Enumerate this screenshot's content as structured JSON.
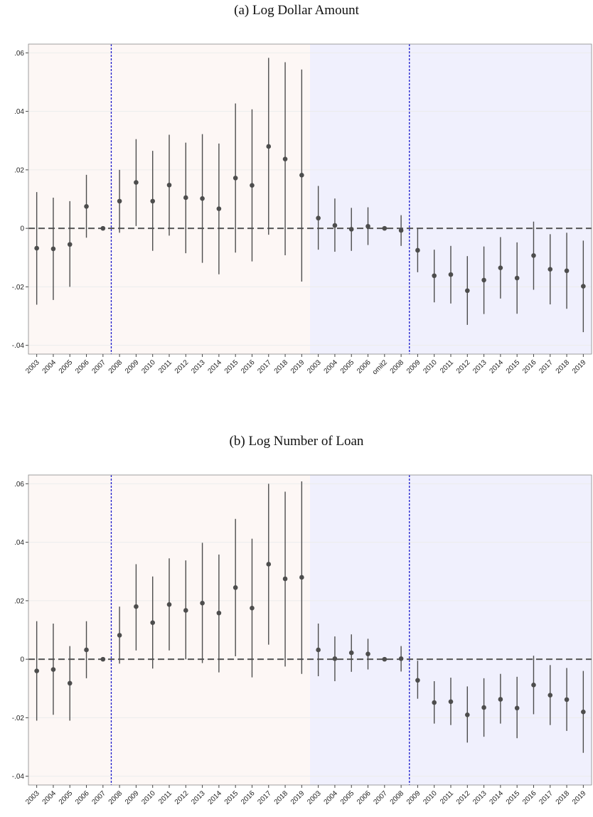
{
  "chart_data": [
    {
      "type": "errorbar",
      "title": "(a) Log Dollar Amount",
      "categories": [
        "2003",
        "2004",
        "2005",
        "2006",
        "2007",
        "2008",
        "2009",
        "2010",
        "2011",
        "2012",
        "2013",
        "2014",
        "2015",
        "2016",
        "2017",
        "2018",
        "2019",
        "2003",
        "2004",
        "2005",
        "2006",
        "omit2",
        "2008",
        "2009",
        "2010",
        "2011",
        "2012",
        "2013",
        "2014",
        "2015",
        "2016",
        "2017",
        "2018",
        "2019"
      ],
      "series": [
        {
          "color": "#4d4d4d",
          "background": "#fdf7f5",
          "values": [
            -0.0068,
            -0.007,
            -0.0055,
            0.0075,
            0,
            0.0093,
            0.0157,
            0.0093,
            0.0148,
            0.0105,
            0.0102,
            0.0067,
            0.0172,
            0.0147,
            0.028,
            0.0237,
            0.0182,
            null,
            null,
            null,
            null,
            null,
            null,
            null,
            null,
            null,
            null,
            null,
            null,
            null,
            null,
            null,
            null,
            null
          ],
          "lower": [
            -0.0261,
            -0.0245,
            -0.02,
            -0.0032,
            0,
            -0.0015,
            0.0008,
            -0.0077,
            -0.0025,
            -0.0085,
            -0.0118,
            -0.0157,
            -0.0083,
            -0.0113,
            -0.0022,
            -0.0092,
            -0.0182,
            null,
            null,
            null,
            null,
            null,
            null,
            null,
            null,
            null,
            null,
            null,
            null,
            null,
            null,
            null,
            null,
            null
          ],
          "upper": [
            0.0124,
            0.0105,
            0.0093,
            0.0183,
            0,
            0.02,
            0.0305,
            0.0265,
            0.032,
            0.0293,
            0.0322,
            0.029,
            0.0427,
            0.0407,
            0.0583,
            0.0568,
            0.0543,
            null,
            null,
            null,
            null,
            null,
            null,
            null,
            null,
            null,
            null,
            null,
            null,
            null,
            null,
            null,
            null,
            null
          ]
        },
        {
          "color": "#4d4d4d",
          "background": "#f0f0fd",
          "values": [
            null,
            null,
            null,
            null,
            null,
            null,
            null,
            null,
            null,
            null,
            null,
            null,
            null,
            null,
            null,
            null,
            null,
            0.0035,
            0.001,
            -0.0003,
            0.0007,
            0,
            -0.0007,
            -0.0075,
            -0.0162,
            -0.0158,
            -0.0213,
            -0.0177,
            -0.0135,
            -0.017,
            -0.0093,
            -0.014,
            -0.0145,
            -0.0198
          ],
          "lower": [
            null,
            null,
            null,
            null,
            null,
            null,
            null,
            null,
            null,
            null,
            null,
            null,
            null,
            null,
            null,
            null,
            null,
            -0.0073,
            -0.008,
            -0.0077,
            -0.0057,
            0,
            -0.006,
            -0.015,
            -0.0253,
            -0.0257,
            -0.033,
            -0.0293,
            -0.024,
            -0.0292,
            -0.021,
            -0.026,
            -0.0275,
            -0.0355
          ],
          "upper": [
            null,
            null,
            null,
            null,
            null,
            null,
            null,
            null,
            null,
            null,
            null,
            null,
            null,
            null,
            null,
            null,
            null,
            0.0145,
            0.0102,
            0.007,
            0.0072,
            0,
            0.0045,
            0,
            -0.0073,
            -0.006,
            -0.0095,
            -0.0062,
            -0.003,
            -0.0048,
            0.0023,
            -0.002,
            -0.0015,
            -0.0042
          ]
        }
      ],
      "ylim": [
        -0.043,
        0.063
      ],
      "yticks": [
        {
          "value": -0.04,
          "label": "-.04"
        },
        {
          "value": -0.02,
          "label": "-.02"
        },
        0,
        {
          "value": 0.02,
          "label": ".02"
        },
        {
          "value": 0.04,
          "label": ".04"
        },
        {
          "value": 0.06,
          "label": ".06"
        }
      ],
      "grid": true,
      "hline": 0,
      "vlines": [
        4.5,
        22.5
      ],
      "vline_color": "#1a1acc"
    },
    {
      "type": "errorbar",
      "title": "(b) Log Number of Loan",
      "categories": [
        "2003",
        "2004",
        "2005",
        "2006",
        "2007",
        "2008",
        "2009",
        "2010",
        "2011",
        "2012",
        "2013",
        "2014",
        "2015",
        "2016",
        "2017",
        "2018",
        "2019",
        "2003",
        "2004",
        "2005",
        "2006",
        "2007",
        "2008",
        "2009",
        "2010",
        "2011",
        "2012",
        "2013",
        "2014",
        "2015",
        "2016",
        "2017",
        "2018",
        "2019"
      ],
      "series": [
        {
          "color": "#4d4d4d",
          "background": "#fdf7f5",
          "values": [
            -0.004,
            -0.0035,
            -0.0082,
            0.0032,
            0,
            0.0082,
            0.018,
            0.0125,
            0.0187,
            0.0167,
            0.0192,
            0.0158,
            0.0245,
            0.0175,
            0.0325,
            0.0275,
            0.028,
            null,
            null,
            null,
            null,
            null,
            null,
            null,
            null,
            null,
            null,
            null,
            null,
            null,
            null,
            null,
            null,
            null
          ],
          "lower": [
            -0.021,
            -0.019,
            -0.021,
            -0.0065,
            0,
            -0.0015,
            0.003,
            -0.0032,
            0.003,
            0,
            -0.0013,
            -0.0045,
            0.001,
            -0.0062,
            0.005,
            -0.0025,
            -0.005,
            null,
            null,
            null,
            null,
            null,
            null,
            null,
            null,
            null,
            null,
            null,
            null,
            null,
            null,
            null,
            null,
            null
          ],
          "upper": [
            0.013,
            0.0122,
            0.0045,
            0.013,
            0,
            0.018,
            0.0325,
            0.0283,
            0.0345,
            0.0338,
            0.0398,
            0.0358,
            0.048,
            0.0412,
            0.06,
            0.0573,
            0.0608,
            null,
            null,
            null,
            null,
            null,
            null,
            null,
            null,
            null,
            null,
            null,
            null,
            null,
            null,
            null,
            null,
            null
          ]
        },
        {
          "color": "#4d4d4d",
          "background": "#f0f0fd",
          "values": [
            null,
            null,
            null,
            null,
            null,
            null,
            null,
            null,
            null,
            null,
            null,
            null,
            null,
            null,
            null,
            null,
            null,
            0.0032,
            0.0002,
            0.0022,
            0.0018,
            0,
            0.0002,
            -0.0072,
            -0.0148,
            -0.0145,
            -0.019,
            -0.0165,
            -0.0137,
            -0.0167,
            -0.0088,
            -0.0123,
            -0.0138,
            -0.018
          ],
          "lower": [
            null,
            null,
            null,
            null,
            null,
            null,
            null,
            null,
            null,
            null,
            null,
            null,
            null,
            null,
            null,
            null,
            null,
            -0.0058,
            -0.0075,
            -0.0043,
            -0.0035,
            0,
            -0.0042,
            -0.0135,
            -0.022,
            -0.0225,
            -0.0285,
            -0.0265,
            -0.022,
            -0.027,
            -0.0188,
            -0.0225,
            -0.0245,
            -0.032
          ],
          "upper": [
            null,
            null,
            null,
            null,
            null,
            null,
            null,
            null,
            null,
            null,
            null,
            null,
            null,
            null,
            null,
            null,
            null,
            0.0122,
            0.0078,
            0.0085,
            0.007,
            0,
            0.0045,
            -0.0005,
            -0.0075,
            -0.0063,
            -0.0093,
            -0.0065,
            -0.005,
            -0.006,
            0.0012,
            -0.002,
            -0.003,
            -0.004
          ]
        }
      ],
      "ylim": [
        -0.043,
        0.063
      ],
      "yticks": [
        {
          "value": -0.04,
          "label": "-.04"
        },
        {
          "value": -0.02,
          "label": "-.02"
        },
        0,
        {
          "value": 0.02,
          "label": ".02"
        },
        {
          "value": 0.04,
          "label": ".04"
        },
        {
          "value": 0.06,
          "label": ".06"
        }
      ],
      "grid": true,
      "hline": 0,
      "vlines": [
        4.5,
        22.5
      ],
      "vline_color": "#1a1acc"
    }
  ]
}
